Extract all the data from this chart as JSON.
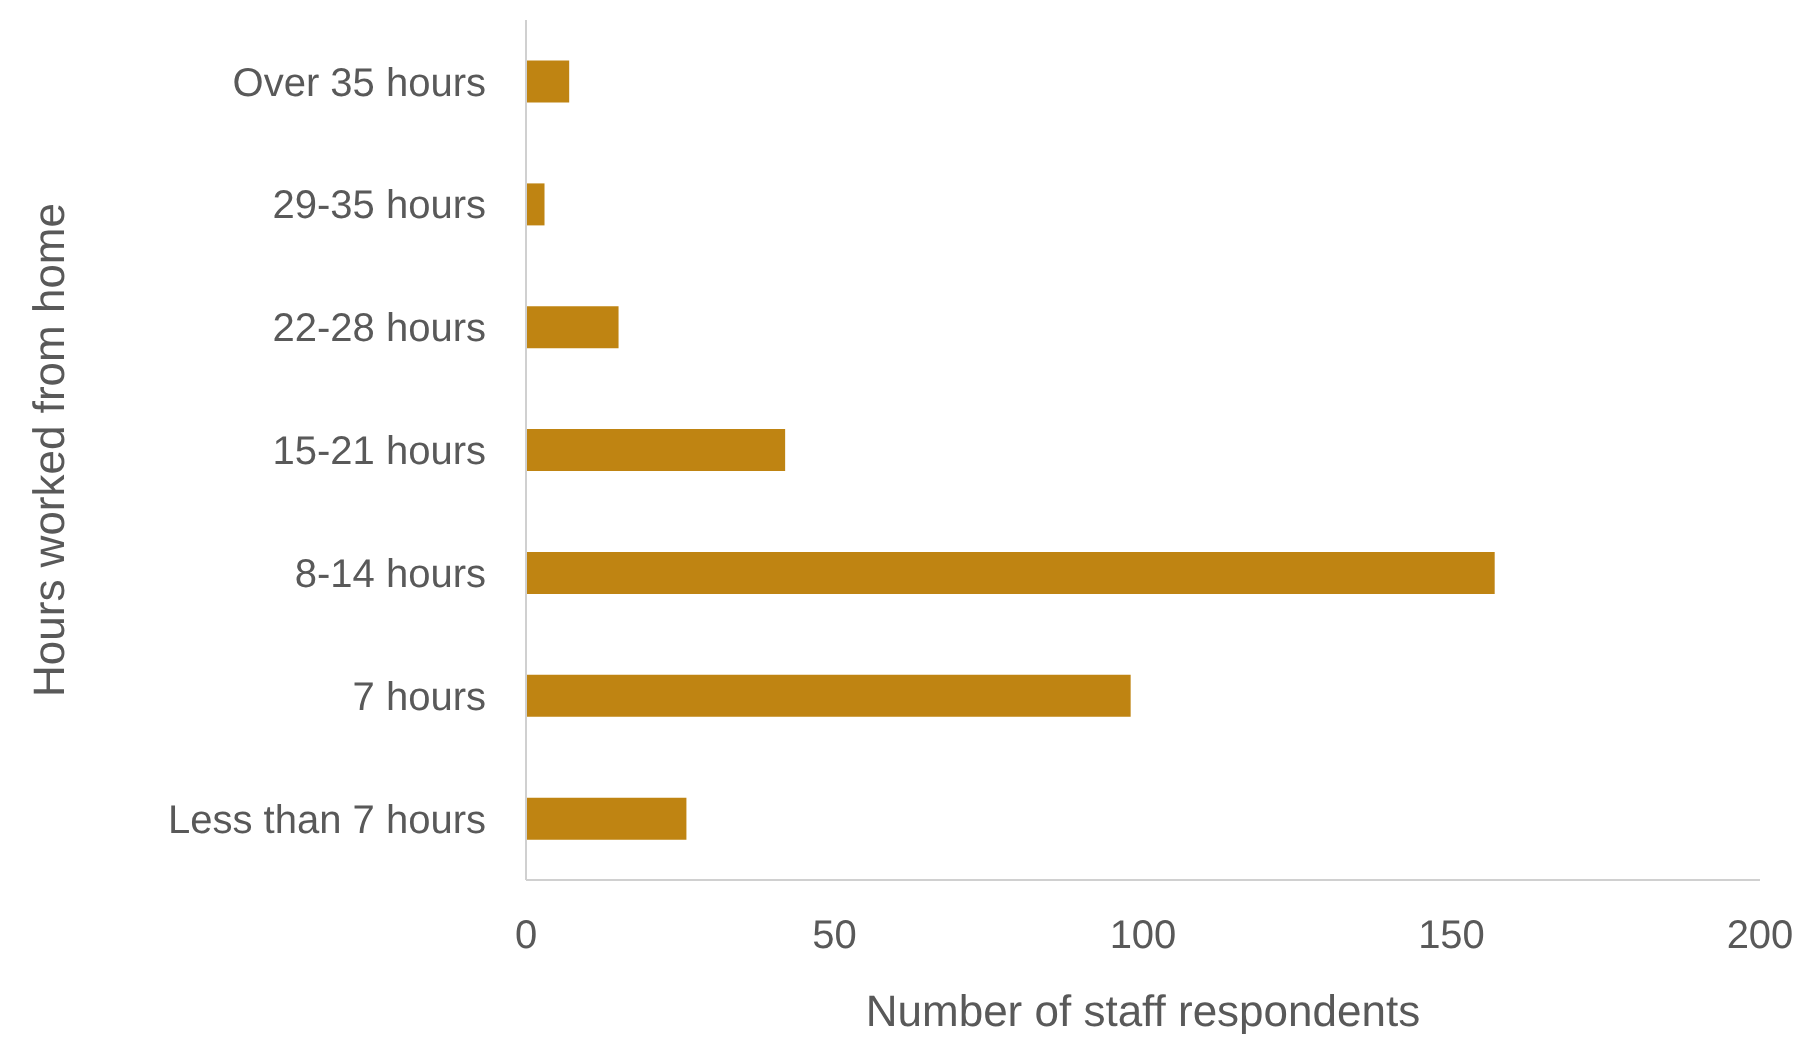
{
  "chart_data": {
    "type": "bar",
    "orientation": "horizontal",
    "xlabel": "Number of staff respondents",
    "ylabel": "Hours worked from home",
    "categories": [
      "Over 35 hours",
      "29-35 hours",
      "22-28 hours",
      "15-21 hours",
      "8-14 hours",
      "7 hours",
      "Less than 7 hours"
    ],
    "values": [
      7,
      3,
      15,
      42,
      157,
      98,
      26
    ],
    "color": "#bf8412",
    "xlim": [
      0,
      200
    ],
    "xticks": [
      0,
      50,
      100,
      150,
      200
    ],
    "grid": false,
    "legend": false
  }
}
